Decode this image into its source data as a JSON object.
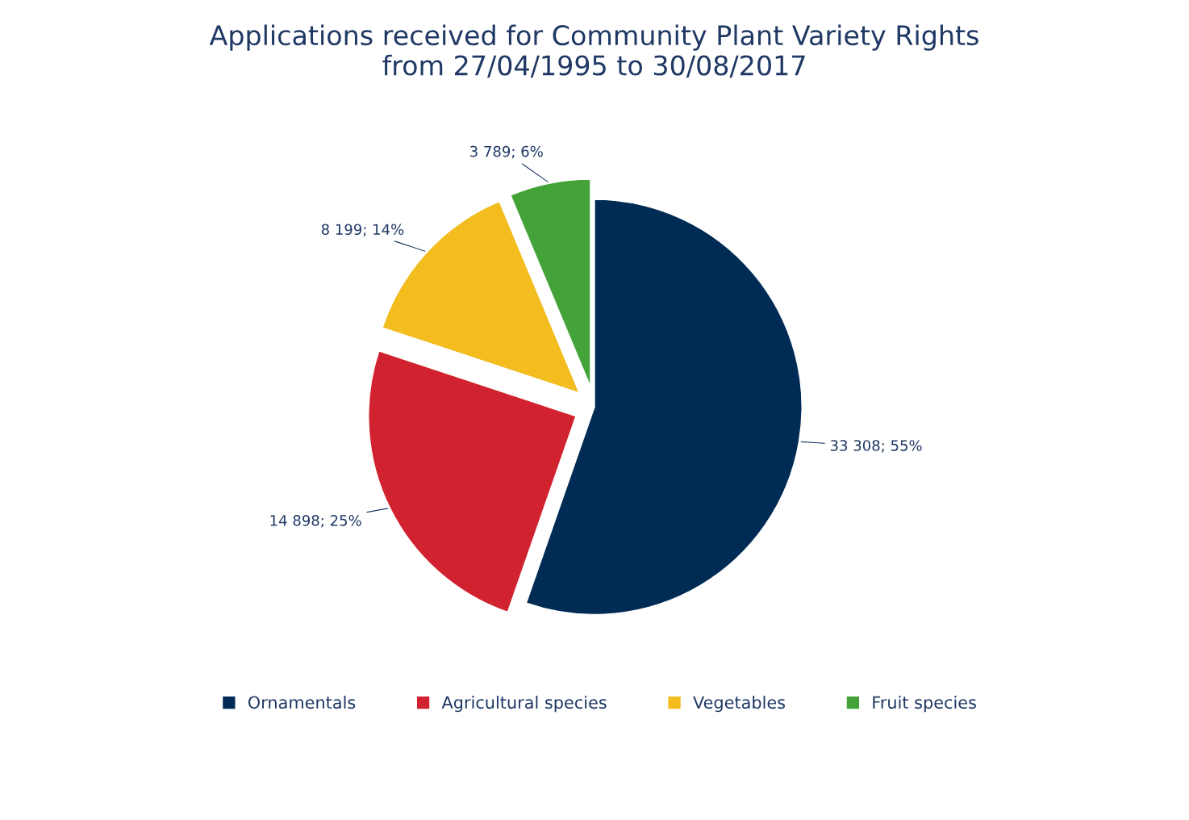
{
  "chart_data": {
    "type": "pie",
    "title": "Applications received for Community Plant Variety Rights\nfrom 27/04/1995 to 30/08/2017",
    "categories": [
      "Ornamentals",
      "Agricultural species",
      "Vegetables",
      "Fruit species"
    ],
    "values": [
      33308,
      14898,
      8199,
      3789
    ],
    "colors": [
      "#002b54",
      "#d12230",
      "#f3bc1f",
      "#43a338"
    ],
    "value_labels": [
      "33 308; 55%",
      "14 898; 25%",
      "8 199; 14%",
      "3 789; 6%"
    ],
    "legend": "bottom"
  }
}
